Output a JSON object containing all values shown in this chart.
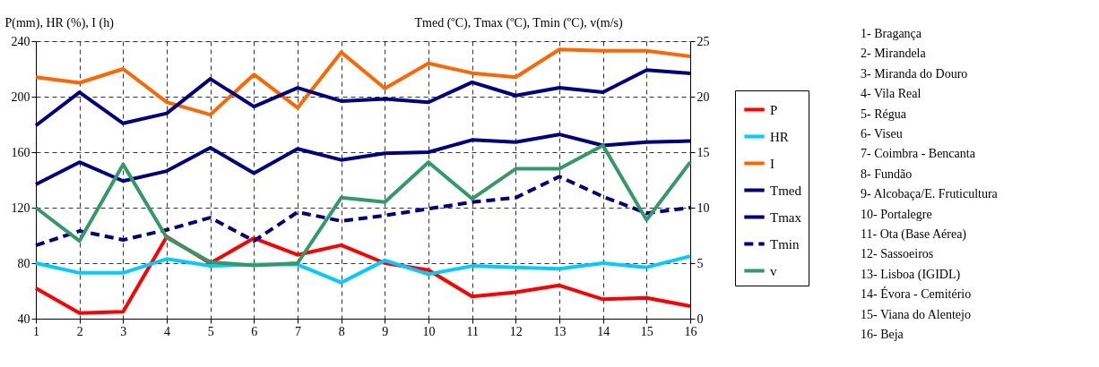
{
  "chart_data": {
    "type": "line",
    "ylabel": "P(mm), HR (%), I (h)",
    "y2label": "Tmed (ºC), Tmax (ºC), Tmin (ºC), v(m/s)",
    "x": [
      1,
      2,
      3,
      4,
      5,
      6,
      7,
      8,
      9,
      10,
      11,
      12,
      13,
      14,
      15,
      16
    ],
    "xlim": [
      1,
      16
    ],
    "xticks": [
      1,
      2,
      3,
      4,
      5,
      6,
      7,
      8,
      9,
      10,
      11,
      12,
      13,
      14,
      15,
      16
    ],
    "ylim": [
      40,
      240
    ],
    "yticks": [
      40,
      80,
      120,
      160,
      200,
      240
    ],
    "y2lim": [
      0,
      25
    ],
    "y2ticks": [
      0,
      5,
      10,
      15,
      20,
      25
    ],
    "grid": true,
    "legend": "right",
    "marker": "none",
    "series": [
      {
        "name": "P",
        "color": "#ff0000",
        "values": [
          62,
          44,
          45,
          99,
          80,
          98,
          86,
          93,
          80,
          75,
          56,
          59,
          64,
          54,
          55,
          49
        ]
      },
      {
        "name": "HR",
        "color": "#00ccff",
        "values": [
          80,
          73,
          73,
          83,
          78,
          79,
          79,
          66,
          82,
          72,
          78,
          77,
          76,
          80,
          77,
          85
        ]
      },
      {
        "name": "I",
        "color": "#ff6600",
        "values": [
          214,
          210,
          220,
          196,
          187,
          216,
          192,
          232,
          206,
          224,
          217,
          214,
          234,
          233,
          233,
          229
        ]
      },
      {
        "name": "Tmed",
        "color": "#000080",
        "axis": "y2",
        "values": [
          12.1,
          14.1,
          12.4,
          13.3,
          15.4,
          13.1,
          15.3,
          14.3,
          14.9,
          15.0,
          16.1,
          15.9,
          16.6,
          15.6,
          15.9,
          16.0
        ]
      },
      {
        "name": "Tmax",
        "color": "#000080",
        "axis": "y2",
        "values": [
          17.4,
          20.4,
          17.6,
          18.5,
          21.6,
          19.1,
          20.8,
          19.6,
          19.8,
          19.5,
          21.3,
          20.1,
          20.8,
          20.4,
          22.4,
          22.1
        ]
      },
      {
        "name": "Tmin",
        "color": "#000080",
        "axis": "y2",
        "line_style": "dashed",
        "values": [
          6.6,
          7.9,
          7.1,
          8.0,
          9.1,
          7.0,
          9.6,
          8.8,
          9.3,
          9.9,
          10.5,
          10.9,
          12.8,
          11.0,
          9.5,
          10.0
        ]
      },
      {
        "name": "v",
        "color": "#339966",
        "axis": "y2",
        "values": [
          10.0,
          7.0,
          13.9,
          7.3,
          5.1,
          4.8,
          5.0,
          10.9,
          10.5,
          14.1,
          10.8,
          13.5,
          13.5,
          15.6,
          8.9,
          14.1
        ]
      }
    ],
    "annotations": [
      "1- Bragança",
      "2- Mirandela",
      "3- Miranda do Douro",
      "4- Vila Real",
      "5- Régua",
      "6- Viseu",
      "7- Coimbra - Bencanta",
      "8- Fundão",
      "9- Alcobaça/E. Fruticultura",
      "10- Portalegre",
      "11- Ota (Base Aérea)",
      "12- Sassoeiros",
      "13- Lisboa (IGIDL)",
      "14- Évora - Cemitério",
      "15- Viana do Alentejo",
      "16- Beja"
    ]
  }
}
